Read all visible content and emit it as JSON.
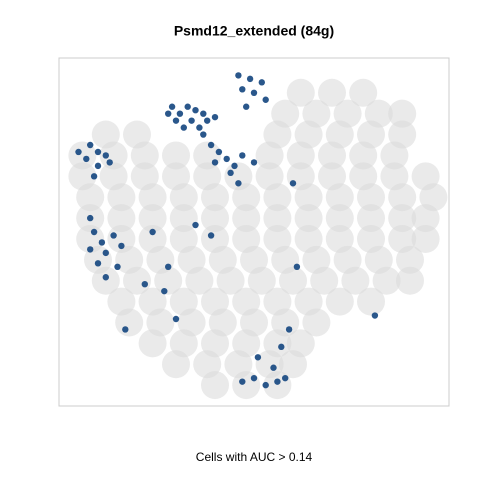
{
  "chart_data": {
    "type": "scatter",
    "title": "Psmd12_extended (84g)",
    "x_label": "Cells with AUC > 0.14",
    "xlim": [
      0,
      100
    ],
    "ylim": [
      0,
      100
    ],
    "series": [
      {
        "color": "#d9d9d9",
        "x": [
          62,
          70,
          78,
          58,
          66,
          74,
          82,
          88,
          12,
          20,
          56,
          64,
          72,
          80,
          88,
          6,
          14,
          22,
          30,
          38,
          54,
          62,
          70,
          78,
          86,
          6,
          14,
          22,
          30,
          38,
          46,
          54,
          62,
          70,
          78,
          86,
          94,
          8,
          16,
          24,
          32,
          40,
          48,
          56,
          64,
          72,
          80,
          88,
          96,
          8,
          16,
          24,
          32,
          40,
          48,
          56,
          64,
          72,
          80,
          88,
          94,
          8,
          16,
          24,
          32,
          40,
          48,
          56,
          64,
          72,
          80,
          88,
          94,
          10,
          18,
          26,
          34,
          42,
          50,
          58,
          66,
          74,
          82,
          90,
          12,
          20,
          28,
          36,
          44,
          52,
          60,
          68,
          76,
          84,
          90,
          16,
          24,
          32,
          40,
          48,
          56,
          64,
          72,
          80,
          18,
          26,
          34,
          42,
          50,
          58,
          66,
          24,
          32,
          40,
          48,
          56,
          62,
          30,
          38,
          46,
          54,
          60,
          40,
          48,
          56
        ],
        "values": [
          90,
          90,
          90,
          84,
          84,
          84,
          84,
          84,
          78,
          78,
          78,
          78,
          78,
          78,
          78,
          72,
          72,
          72,
          72,
          72,
          72,
          72,
          72,
          72,
          72,
          66,
          66,
          66,
          66,
          66,
          66,
          66,
          66,
          66,
          66,
          66,
          66,
          60,
          60,
          60,
          60,
          60,
          60,
          60,
          60,
          60,
          60,
          60,
          60,
          54,
          54,
          54,
          54,
          54,
          54,
          54,
          54,
          54,
          54,
          54,
          54,
          48,
          48,
          48,
          48,
          48,
          48,
          48,
          48,
          48,
          48,
          48,
          48,
          42,
          42,
          42,
          42,
          42,
          42,
          42,
          42,
          42,
          42,
          42,
          36,
          36,
          36,
          36,
          36,
          36,
          36,
          36,
          36,
          36,
          36,
          30,
          30,
          30,
          30,
          30,
          30,
          30,
          30,
          30,
          24,
          24,
          24,
          24,
          24,
          24,
          24,
          18,
          18,
          18,
          18,
          18,
          18,
          12,
          12,
          12,
          12,
          12,
          6,
          6,
          6
        ]
      },
      {
        "color": "#1f4e85",
        "x": [
          29,
          31,
          33,
          35,
          37,
          30,
          34,
          38,
          40,
          32,
          36,
          28,
          46,
          49,
          52,
          50,
          53,
          47,
          48,
          37,
          39,
          41,
          43,
          45,
          40,
          44,
          47,
          46,
          50,
          5,
          8,
          10,
          12,
          7,
          10,
          9,
          13,
          8,
          9,
          11,
          8,
          12,
          14,
          10,
          12,
          15,
          16,
          24,
          28,
          39,
          30,
          22,
          17,
          61,
          81,
          27,
          35,
          60,
          47,
          50,
          53,
          56,
          58,
          51,
          57,
          55,
          59
        ],
        "values": [
          86,
          84,
          86,
          85,
          84,
          82,
          82,
          82,
          83,
          80,
          80,
          84,
          95,
          94,
          93,
          90,
          88,
          91,
          86,
          78,
          75,
          73,
          71,
          69,
          70,
          67,
          72,
          64,
          70,
          73,
          75,
          73,
          72,
          71,
          69,
          66,
          70,
          54,
          50,
          47,
          45,
          44,
          49,
          41,
          37,
          40,
          46,
          50,
          40,
          49,
          25,
          35,
          22,
          40,
          26,
          33,
          52,
          64,
          7,
          8,
          6,
          7,
          8,
          14,
          17,
          11,
          22
        ]
      }
    ]
  }
}
